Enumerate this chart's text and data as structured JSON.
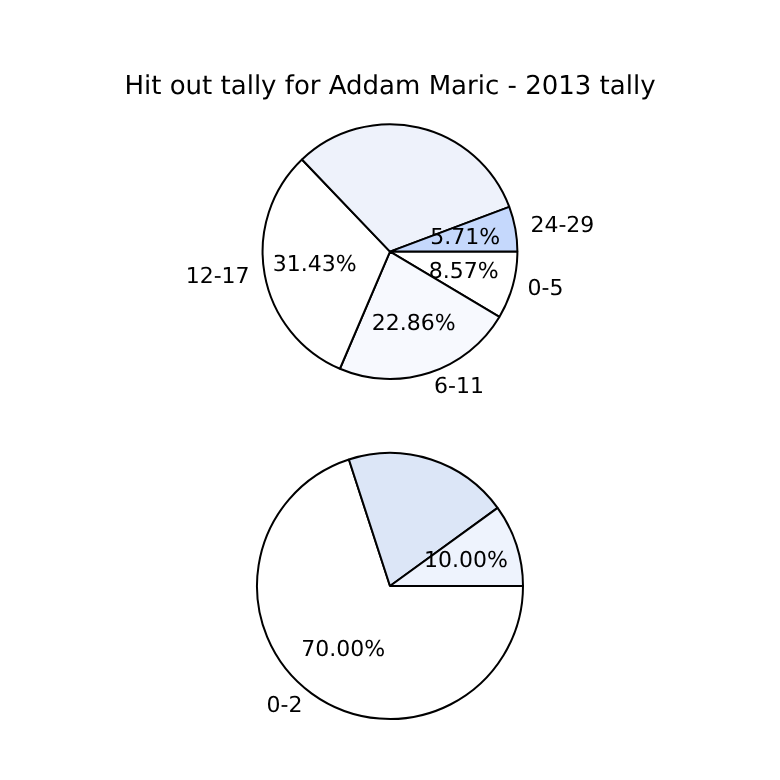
{
  "chart_data": [
    {
      "type": "pie",
      "title": "Hit out tally for Addam Maric - 2013 tally",
      "categories": [
        "0-5",
        "6-11",
        "12-17",
        null,
        "24-29"
      ],
      "values": [
        8.57,
        22.86,
        31.43,
        31.43,
        5.71
      ],
      "value_labels": [
        "8.57%",
        "22.86%",
        "31.43%",
        null,
        "5.71%"
      ],
      "colors": [
        "#ffffff",
        "#f7f9fe",
        "#ffffff",
        "#eef2fb",
        "#c5d8fc"
      ]
    },
    {
      "type": "pie",
      "categories": [
        "0-2",
        null,
        null
      ],
      "values": [
        70,
        20,
        10
      ],
      "value_labels": [
        "70.00%",
        null,
        "10.00%"
      ],
      "colors": [
        "#ffffff",
        "#dce6f7",
        "#eef3fd"
      ]
    }
  ]
}
